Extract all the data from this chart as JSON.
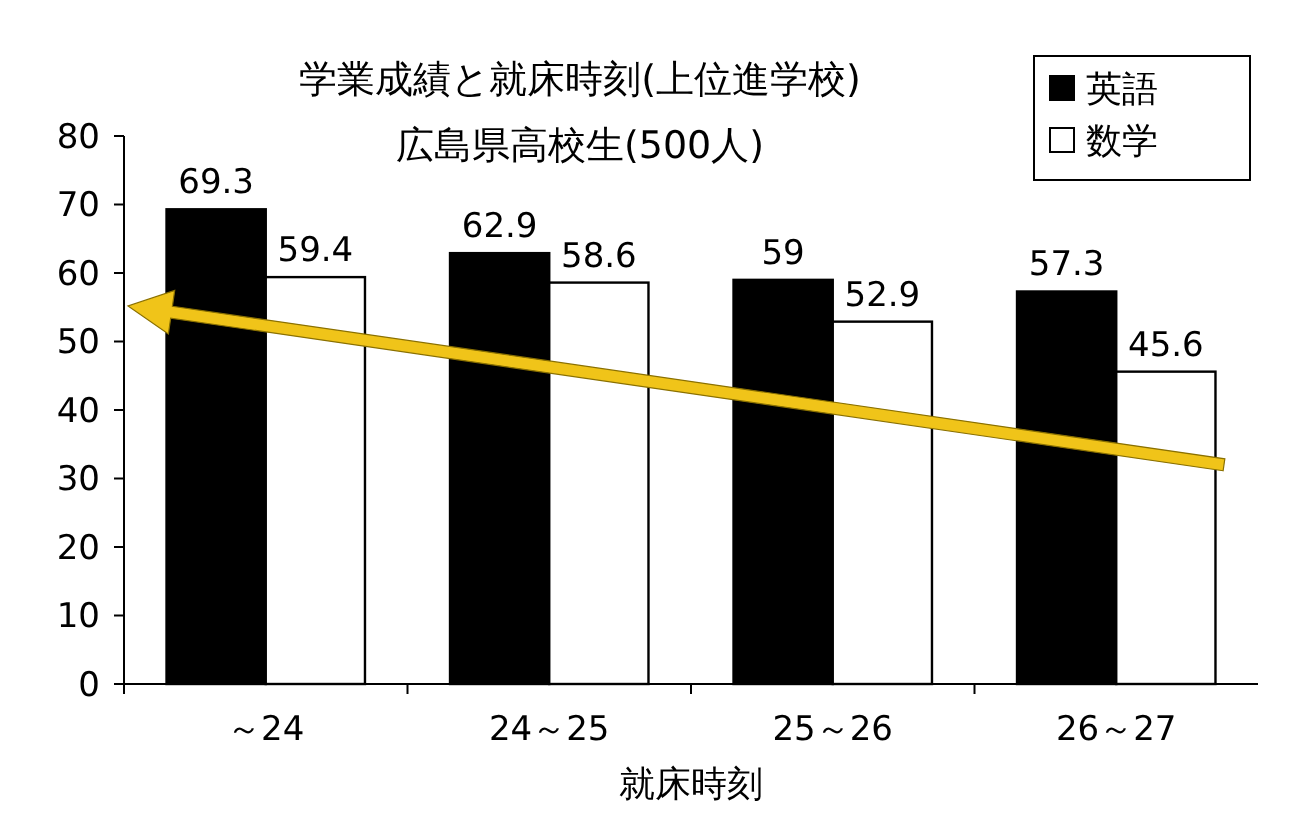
{
  "chart_data": {
    "type": "bar",
    "title": "学業成績と就床時刻(上位進学校)",
    "subtitle": "広島県高校生(500人)",
    "xlabel": "就床時刻",
    "categories": [
      "～24",
      "24～25",
      "25～26",
      "26～27"
    ],
    "series": [
      {
        "name": "英語",
        "color": "#000000",
        "values": [
          69.3,
          62.9,
          59,
          57.3
        ]
      },
      {
        "name": "数学",
        "color": "#ffffff",
        "values": [
          59.4,
          58.6,
          52.9,
          45.6
        ]
      }
    ],
    "ylim": [
      0,
      80
    ],
    "yticks": [
      0,
      10,
      20,
      30,
      40,
      50,
      60,
      70,
      80
    ],
    "grid": false,
    "legend": "top right",
    "data_labels": true
  }
}
